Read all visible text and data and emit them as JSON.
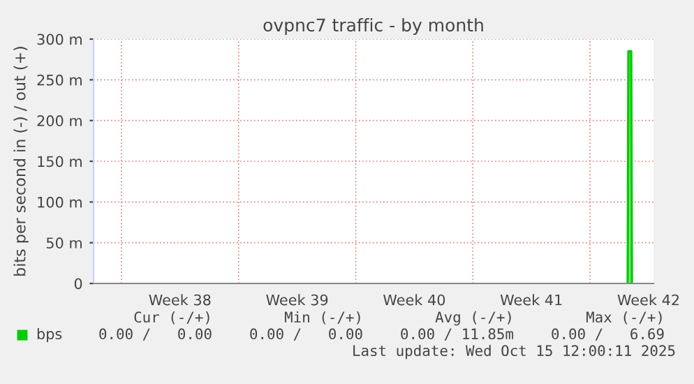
{
  "chart_data": {
    "type": "area",
    "title": "ovpnc7 traffic - by month",
    "ylabel": "bits per second in (-) / out (+)",
    "series": [
      {
        "name": "bps",
        "color": "#00cc00",
        "x": [
          "2025-10-15T06:00",
          "2025-10-15T07:00",
          "2025-10-15T11:00",
          "2025-10-15T12:00"
        ],
        "values": [
          0,
          285,
          285,
          0
        ]
      }
    ],
    "xlim": [
      "2025-09-13T08:00",
      "2025-10-16T19:00"
    ],
    "xticks": [
      {
        "value": "2025-09-15",
        "label": null
      },
      {
        "value": "2025-09-18T12:00",
        "label": "Week 38"
      },
      {
        "value": "2025-09-22",
        "label": null
      },
      {
        "value": "2025-09-25T12:00",
        "label": "Week 39"
      },
      {
        "value": "2025-09-29",
        "label": null
      },
      {
        "value": "2025-10-02T12:00",
        "label": "Week 40"
      },
      {
        "value": "2025-10-06",
        "label": null
      },
      {
        "value": "2025-10-09T12:00",
        "label": "Week 41"
      },
      {
        "value": "2025-10-13",
        "label": null
      },
      {
        "value": "2025-10-16T12:00",
        "label": "Week 42"
      }
    ],
    "ylim": [
      0,
      300
    ],
    "yticks": [
      0,
      {
        "value": 50,
        "label": "50 m"
      },
      {
        "value": 100,
        "label": "100 m"
      },
      {
        "value": 150,
        "label": "150 m"
      },
      {
        "value": 200,
        "label": "200 m"
      },
      {
        "value": 250,
        "label": "250 m"
      },
      {
        "value": 300,
        "label": "300 m"
      }
    ],
    "grid": true,
    "legend": "bottom left",
    "annotations": [
      "Cur (-/+)",
      "Min (-/+)",
      "Avg (-/+)",
      "Max (-/+)",
      "0.00 /   0.00",
      "0.00 /   0.00",
      "0.00 / 11.85m",
      "0.00 /   6.69",
      "Last update: Wed Oct 15 12:00:11 2025"
    ]
  }
}
